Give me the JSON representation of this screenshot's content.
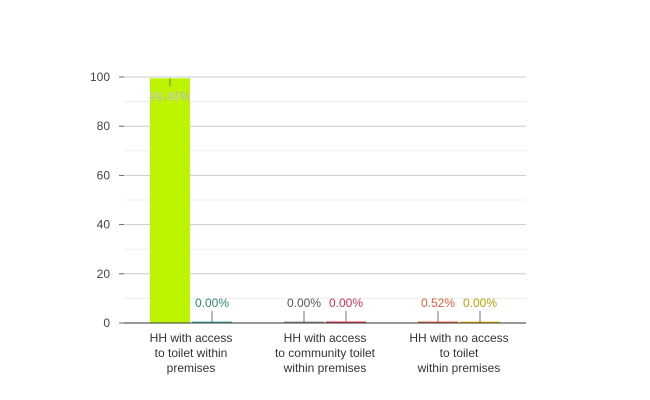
{
  "chart_data": {
    "type": "bar",
    "categories": [
      [
        "HH with access",
        "to toilet within",
        "premises"
      ],
      [
        "HH with access",
        "to community toilet",
        "within premises"
      ],
      [
        "HH with no access",
        "to toilet",
        "within premises"
      ]
    ],
    "bars": [
      {
        "category": 0,
        "value": 99.48,
        "label": "99.48%",
        "color": "#bdf400",
        "label_color": "#ffffff"
      },
      {
        "category": 0,
        "value": 0.0,
        "label": "0.00%",
        "color": "#4db6ac",
        "label_color": "#2e8b6e"
      },
      {
        "category": 1,
        "value": 0.0,
        "label": "0.00%",
        "color": "#9e9e9e",
        "label_color": "#555555"
      },
      {
        "category": 1,
        "value": 0.0,
        "label": "0.00%",
        "color": "#e8364f",
        "label_color": "#d32f4a"
      },
      {
        "category": 2,
        "value": 0.52,
        "label": "0.52%",
        "color": "#ef6c4a",
        "label_color": "#e0603c"
      },
      {
        "category": 2,
        "value": 0.0,
        "label": "0.00%",
        "color": "#f5c518",
        "label_color": "#b8a000"
      }
    ],
    "y_ticks": [
      "0",
      "20",
      "40",
      "60",
      "80",
      "100"
    ],
    "ylim": [
      0,
      100
    ],
    "grid": true
  }
}
